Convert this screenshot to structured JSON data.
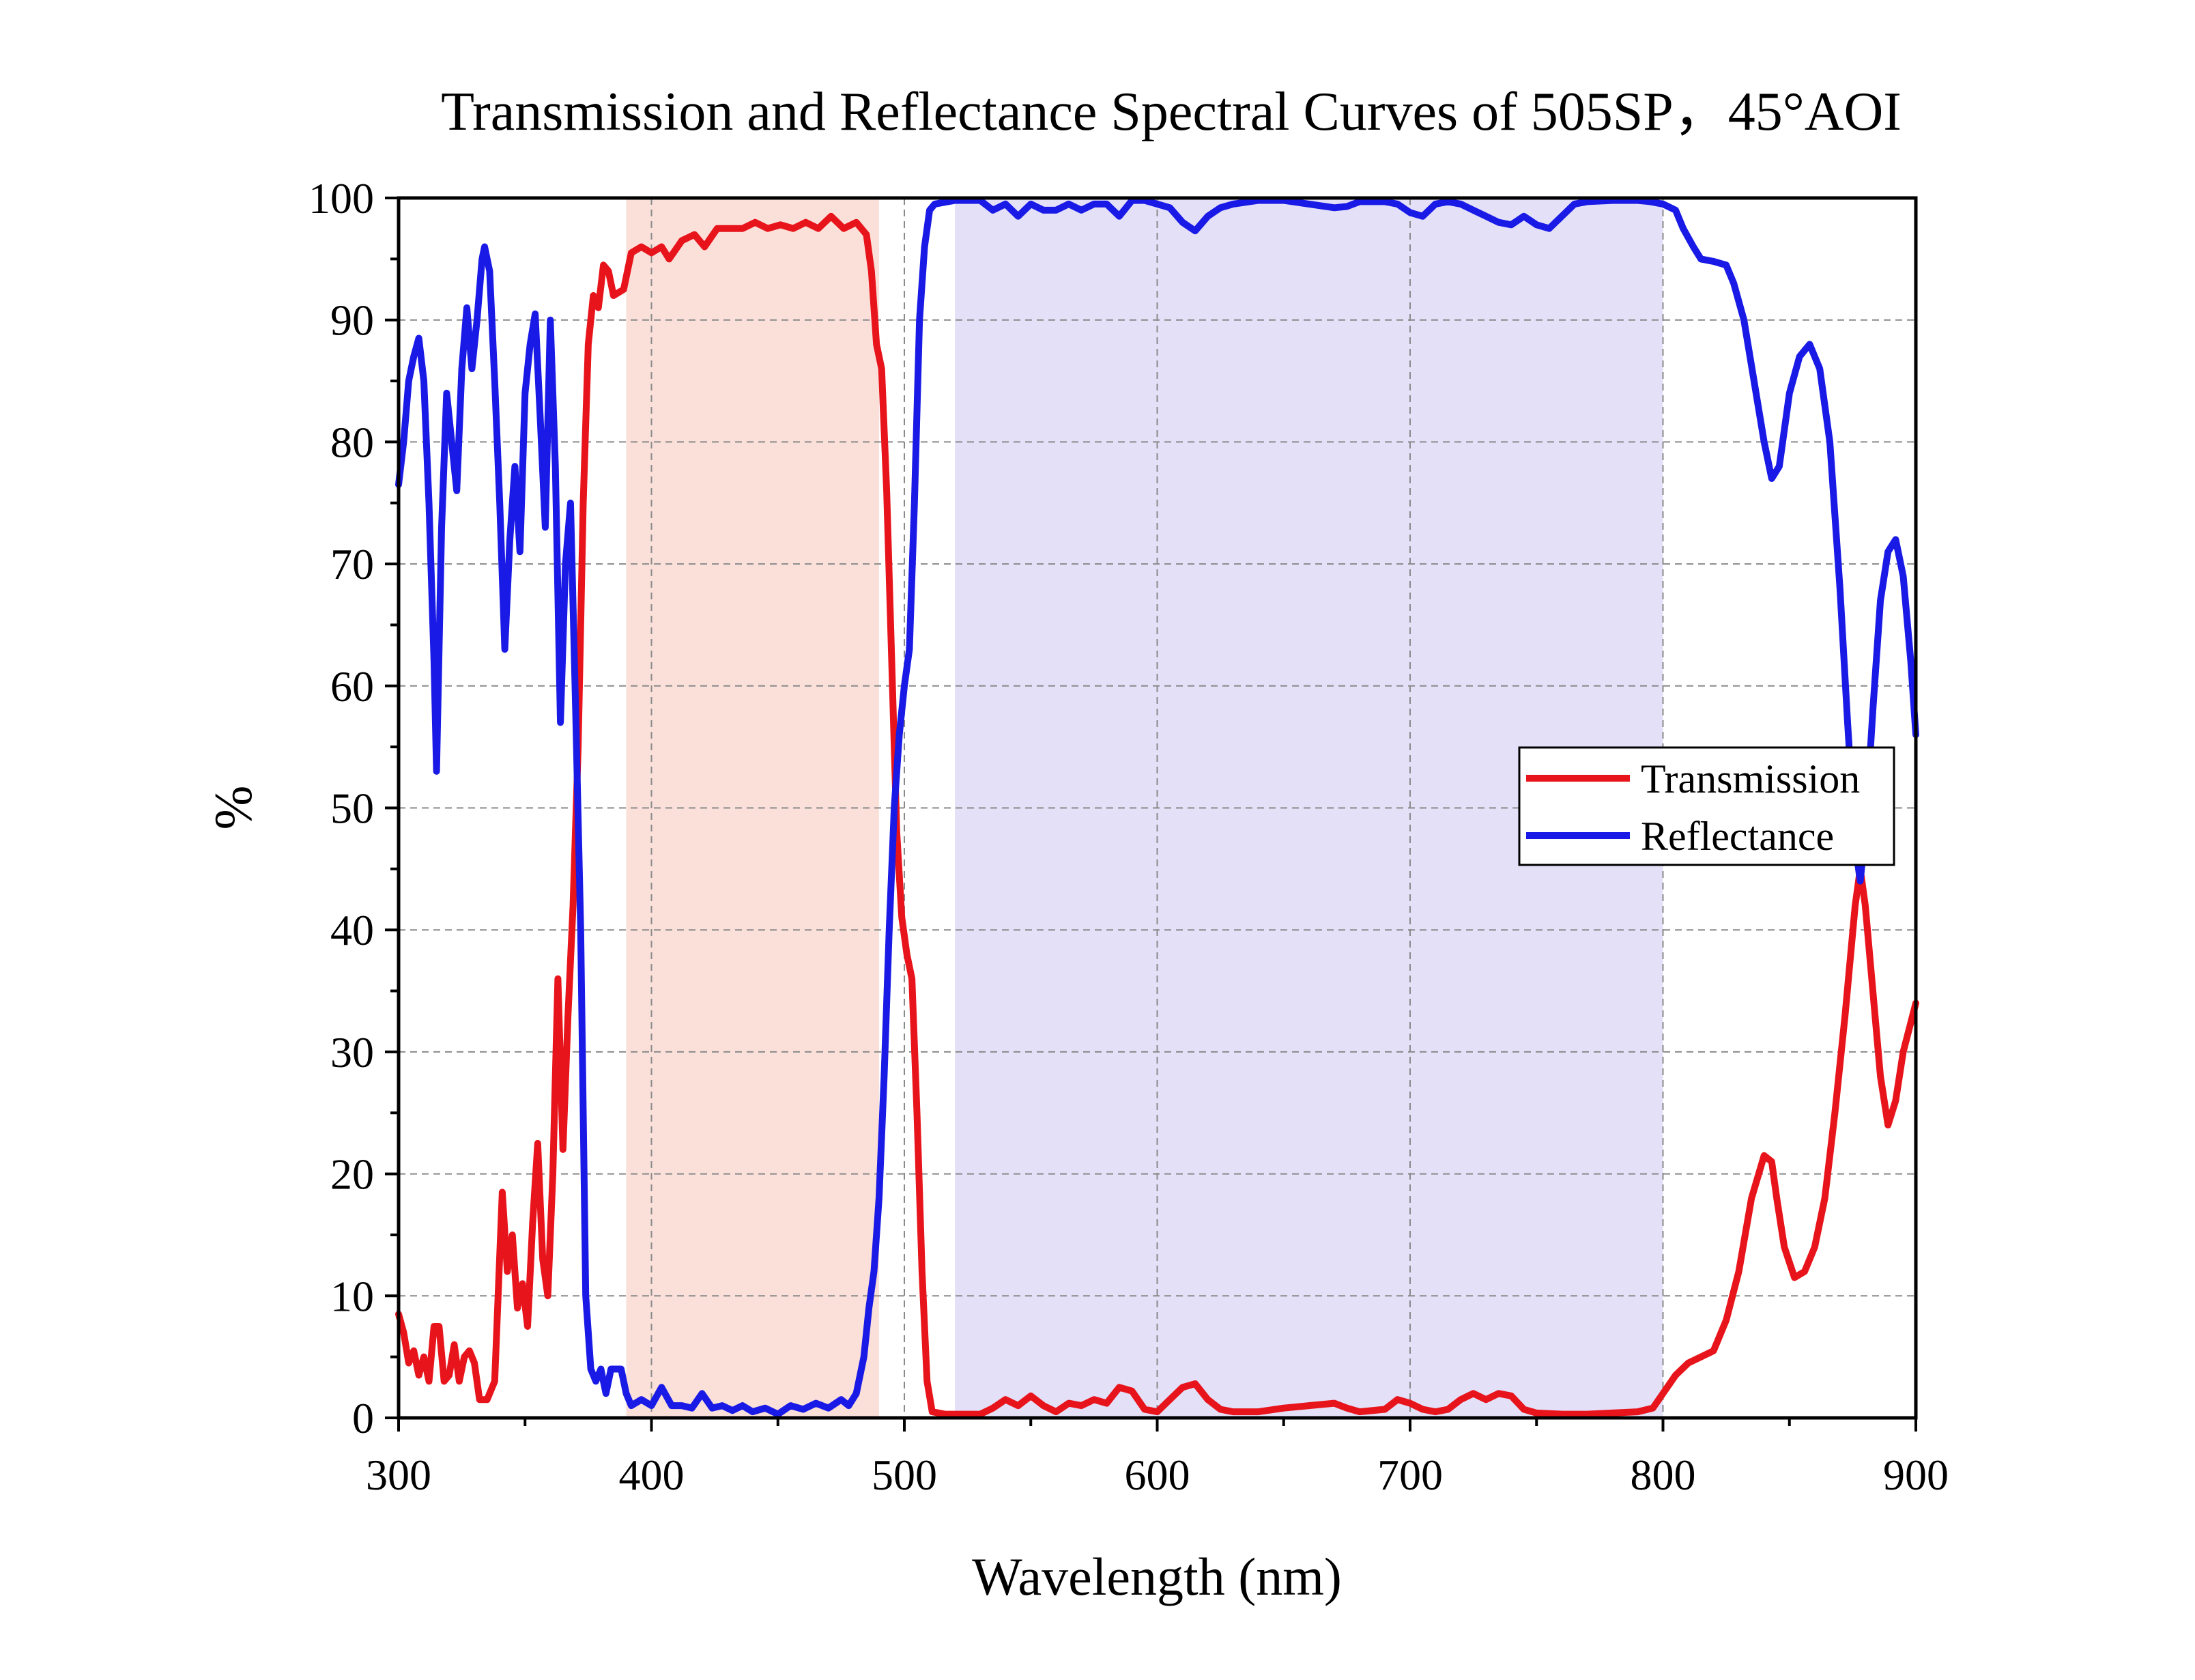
{
  "chart_data": {
    "type": "line",
    "title": "Transmission and Reflectance Spectral Curves of 505SP，45°AOI",
    "xlabel": "Wavelength (nm)",
    "ylabel": "%",
    "xlim": [
      300,
      900
    ],
    "ylim": [
      0,
      100
    ],
    "x_ticks": [
      300,
      400,
      500,
      600,
      700,
      800,
      900
    ],
    "y_ticks": [
      0,
      10,
      20,
      30,
      40,
      50,
      60,
      70,
      80,
      90,
      100
    ],
    "grid": "dashed",
    "legend_position": "right",
    "highlight_bands": [
      {
        "x_start": 390,
        "x_end": 490,
        "color": "#fbe0da"
      },
      {
        "x_start": 520,
        "x_end": 800,
        "color": "#e3e0f8"
      }
    ],
    "series": [
      {
        "name": "Transmission",
        "color": "#e8141b",
        "points": [
          [
            300,
            8.5
          ],
          [
            302,
            7
          ],
          [
            304,
            4.5
          ],
          [
            306,
            5.5
          ],
          [
            308,
            3.5
          ],
          [
            310,
            5
          ],
          [
            312,
            3
          ],
          [
            314,
            7.5
          ],
          [
            316,
            7.5
          ],
          [
            318,
            3
          ],
          [
            320,
            3.5
          ],
          [
            322,
            6
          ],
          [
            324,
            3
          ],
          [
            326,
            5
          ],
          [
            328,
            5.5
          ],
          [
            330,
            4.5
          ],
          [
            332,
            1.5
          ],
          [
            335,
            1.5
          ],
          [
            338,
            3
          ],
          [
            341,
            18.5
          ],
          [
            343,
            12
          ],
          [
            345,
            15
          ],
          [
            347,
            9
          ],
          [
            349,
            11
          ],
          [
            351,
            7.5
          ],
          [
            353,
            16
          ],
          [
            355,
            22.5
          ],
          [
            357,
            13
          ],
          [
            359,
            10
          ],
          [
            361,
            20
          ],
          [
            363,
            36
          ],
          [
            365,
            22
          ],
          [
            367,
            33
          ],
          [
            369,
            42
          ],
          [
            371,
            55
          ],
          [
            373,
            75
          ],
          [
            375,
            88
          ],
          [
            377,
            92
          ],
          [
            379,
            91
          ],
          [
            381,
            94.5
          ],
          [
            383,
            94
          ],
          [
            385,
            92
          ],
          [
            389,
            92.5
          ],
          [
            392,
            95.5
          ],
          [
            396,
            96
          ],
          [
            400,
            95.5
          ],
          [
            404,
            96
          ],
          [
            407,
            95
          ],
          [
            412,
            96.5
          ],
          [
            417,
            97
          ],
          [
            421,
            96
          ],
          [
            426,
            97.5
          ],
          [
            431,
            97.5
          ],
          [
            436,
            97.5
          ],
          [
            441,
            98
          ],
          [
            446,
            97.5
          ],
          [
            451,
            97.8
          ],
          [
            456,
            97.5
          ],
          [
            461,
            98
          ],
          [
            466,
            97.5
          ],
          [
            471,
            98.5
          ],
          [
            476,
            97.5
          ],
          [
            481,
            98
          ],
          [
            485,
            97
          ],
          [
            487,
            94
          ],
          [
            489,
            88
          ],
          [
            491,
            86
          ],
          [
            493,
            76
          ],
          [
            495,
            62
          ],
          [
            497,
            48
          ],
          [
            499,
            41
          ],
          [
            501,
            38
          ],
          [
            503,
            36
          ],
          [
            505,
            25
          ],
          [
            507,
            12
          ],
          [
            509,
            3
          ],
          [
            511,
            0.5
          ],
          [
            516,
            0.3
          ],
          [
            530,
            0.3
          ],
          [
            535,
            0.8
          ],
          [
            540,
            1.5
          ],
          [
            545,
            1
          ],
          [
            550,
            1.8
          ],
          [
            555,
            1
          ],
          [
            560,
            0.5
          ],
          [
            565,
            1.2
          ],
          [
            570,
            1
          ],
          [
            575,
            1.5
          ],
          [
            580,
            1.2
          ],
          [
            585,
            2.5
          ],
          [
            590,
            2.2
          ],
          [
            595,
            0.7
          ],
          [
            600,
            0.5
          ],
          [
            605,
            1.5
          ],
          [
            610,
            2.5
          ],
          [
            615,
            2.8
          ],
          [
            620,
            1.5
          ],
          [
            625,
            0.7
          ],
          [
            630,
            0.5
          ],
          [
            640,
            0.5
          ],
          [
            650,
            0.8
          ],
          [
            660,
            1
          ],
          [
            670,
            1.2
          ],
          [
            675,
            0.8
          ],
          [
            680,
            0.5
          ],
          [
            690,
            0.7
          ],
          [
            695,
            1.5
          ],
          [
            700,
            1.2
          ],
          [
            705,
            0.7
          ],
          [
            710,
            0.5
          ],
          [
            715,
            0.7
          ],
          [
            720,
            1.5
          ],
          [
            725,
            2
          ],
          [
            730,
            1.5
          ],
          [
            735,
            2
          ],
          [
            740,
            1.8
          ],
          [
            745,
            0.7
          ],
          [
            750,
            0.4
          ],
          [
            760,
            0.3
          ],
          [
            770,
            0.3
          ],
          [
            780,
            0.4
          ],
          [
            790,
            0.5
          ],
          [
            796,
            0.8
          ],
          [
            800,
            2
          ],
          [
            805,
            3.5
          ],
          [
            810,
            4.5
          ],
          [
            815,
            5
          ],
          [
            820,
            5.5
          ],
          [
            825,
            8
          ],
          [
            830,
            12
          ],
          [
            835,
            18
          ],
          [
            840,
            21.5
          ],
          [
            843,
            21
          ],
          [
            845,
            18
          ],
          [
            848,
            14
          ],
          [
            852,
            11.5
          ],
          [
            856,
            12
          ],
          [
            860,
            14
          ],
          [
            864,
            18
          ],
          [
            868,
            25
          ],
          [
            872,
            33
          ],
          [
            876,
            42
          ],
          [
            878,
            45
          ],
          [
            880,
            42
          ],
          [
            883,
            35
          ],
          [
            886,
            28
          ],
          [
            889,
            24
          ],
          [
            892,
            26
          ],
          [
            895,
            30
          ],
          [
            900,
            34
          ]
        ]
      },
      {
        "name": "Reflectance",
        "color": "#1a1ae6",
        "points": [
          [
            300,
            76.5
          ],
          [
            302,
            80
          ],
          [
            304,
            85
          ],
          [
            306,
            87
          ],
          [
            308,
            88.5
          ],
          [
            310,
            85
          ],
          [
            312,
            75
          ],
          [
            314,
            62
          ],
          [
            315,
            53
          ],
          [
            317,
            73
          ],
          [
            319,
            84
          ],
          [
            321,
            80
          ],
          [
            323,
            76
          ],
          [
            325,
            86
          ],
          [
            327,
            91
          ],
          [
            329,
            86
          ],
          [
            331,
            90
          ],
          [
            333,
            95
          ],
          [
            334,
            96
          ],
          [
            336,
            94
          ],
          [
            338,
            85
          ],
          [
            340,
            75
          ],
          [
            342,
            63
          ],
          [
            344,
            72
          ],
          [
            346,
            78
          ],
          [
            348,
            71
          ],
          [
            350,
            84
          ],
          [
            352,
            88
          ],
          [
            354,
            90.5
          ],
          [
            356,
            82
          ],
          [
            358,
            73
          ],
          [
            360,
            90
          ],
          [
            362,
            78
          ],
          [
            364,
            57
          ],
          [
            366,
            70
          ],
          [
            368,
            75
          ],
          [
            370,
            58
          ],
          [
            372,
            40
          ],
          [
            374,
            10
          ],
          [
            376,
            4
          ],
          [
            378,
            3
          ],
          [
            380,
            4
          ],
          [
            382,
            2
          ],
          [
            384,
            4
          ],
          [
            388,
            4
          ],
          [
            390,
            2
          ],
          [
            392,
            1
          ],
          [
            396,
            1.5
          ],
          [
            400,
            1
          ],
          [
            404,
            2.5
          ],
          [
            408,
            1
          ],
          [
            412,
            1
          ],
          [
            416,
            0.8
          ],
          [
            420,
            2
          ],
          [
            424,
            0.8
          ],
          [
            428,
            1
          ],
          [
            432,
            0.6
          ],
          [
            436,
            1
          ],
          [
            440,
            0.5
          ],
          [
            445,
            0.8
          ],
          [
            450,
            0.3
          ],
          [
            455,
            1
          ],
          [
            460,
            0.7
          ],
          [
            465,
            1.2
          ],
          [
            470,
            0.8
          ],
          [
            475,
            1.5
          ],
          [
            478,
            1
          ],
          [
            481,
            2
          ],
          [
            484,
            5
          ],
          [
            486,
            9
          ],
          [
            488,
            12
          ],
          [
            490,
            18
          ],
          [
            492,
            28
          ],
          [
            494,
            40
          ],
          [
            496,
            50
          ],
          [
            498,
            56
          ],
          [
            500,
            60
          ],
          [
            502,
            63
          ],
          [
            504,
            75
          ],
          [
            506,
            90
          ],
          [
            508,
            96
          ],
          [
            510,
            99
          ],
          [
            512,
            99.5
          ],
          [
            520,
            99.8
          ],
          [
            530,
            99.8
          ],
          [
            535,
            99
          ],
          [
            540,
            99.5
          ],
          [
            545,
            98.5
          ],
          [
            550,
            99.5
          ],
          [
            555,
            99
          ],
          [
            560,
            99
          ],
          [
            565,
            99.5
          ],
          [
            570,
            99
          ],
          [
            575,
            99.5
          ],
          [
            580,
            99.5
          ],
          [
            585,
            98.5
          ],
          [
            590,
            99.8
          ],
          [
            595,
            99.8
          ],
          [
            600,
            99.5
          ],
          [
            605,
            99.2
          ],
          [
            610,
            98
          ],
          [
            615,
            97.3
          ],
          [
            620,
            98.5
          ],
          [
            625,
            99.2
          ],
          [
            630,
            99.5
          ],
          [
            640,
            99.8
          ],
          [
            650,
            99.8
          ],
          [
            660,
            99.5
          ],
          [
            670,
            99.2
          ],
          [
            675,
            99.3
          ],
          [
            680,
            99.7
          ],
          [
            690,
            99.7
          ],
          [
            695,
            99.5
          ],
          [
            700,
            98.8
          ],
          [
            705,
            98.5
          ],
          [
            710,
            99.5
          ],
          [
            715,
            99.7
          ],
          [
            720,
            99.5
          ],
          [
            725,
            99
          ],
          [
            730,
            98.5
          ],
          [
            735,
            98
          ],
          [
            740,
            97.8
          ],
          [
            745,
            98.5
          ],
          [
            750,
            97.8
          ],
          [
            755,
            97.5
          ],
          [
            760,
            98.5
          ],
          [
            765,
            99.5
          ],
          [
            770,
            99.7
          ],
          [
            780,
            99.8
          ],
          [
            790,
            99.8
          ],
          [
            795,
            99.7
          ],
          [
            800,
            99.5
          ],
          [
            805,
            99
          ],
          [
            808,
            97.5
          ],
          [
            812,
            96
          ],
          [
            815,
            95
          ],
          [
            820,
            94.8
          ],
          [
            825,
            94.5
          ],
          [
            828,
            93
          ],
          [
            832,
            90
          ],
          [
            836,
            85
          ],
          [
            840,
            80
          ],
          [
            843,
            77
          ],
          [
            846,
            78
          ],
          [
            850,
            84
          ],
          [
            854,
            87
          ],
          [
            858,
            88
          ],
          [
            862,
            86
          ],
          [
            866,
            80
          ],
          [
            870,
            68
          ],
          [
            873,
            57
          ],
          [
            876,
            47
          ],
          [
            878,
            44
          ],
          [
            880,
            48
          ],
          [
            883,
            58
          ],
          [
            886,
            67
          ],
          [
            889,
            71
          ],
          [
            892,
            72
          ],
          [
            895,
            69
          ],
          [
            898,
            62
          ],
          [
            900,
            56
          ]
        ]
      }
    ]
  }
}
